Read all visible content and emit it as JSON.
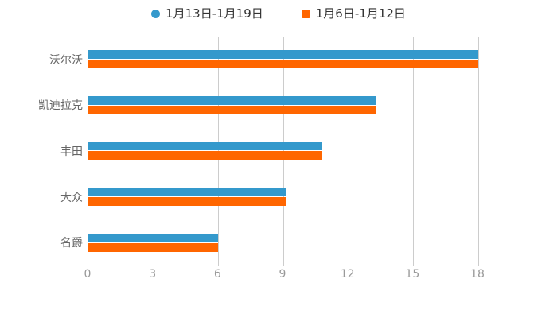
{
  "legend": {
    "items": [
      {
        "label": "1月13日-1月19日",
        "marker": "circle-icon",
        "color": "#3499CC"
      },
      {
        "label": "1月6日-1月12日",
        "marker": "square-icon",
        "color": "#FF6600"
      }
    ]
  },
  "chart_data": {
    "type": "bar",
    "orientation": "horizontal",
    "title": "",
    "xlabel": "",
    "ylabel": "",
    "categories": [
      "沃尔沃",
      "凯迪拉克",
      "丰田",
      "大众",
      "名爵"
    ],
    "series": [
      {
        "name": "1月13日-1月19日",
        "color": "#3499CC",
        "values": [
          18,
          13.3,
          10.8,
          9.1,
          6
        ]
      },
      {
        "name": "1月6日-1月12日",
        "color": "#FF6600",
        "values": [
          18,
          13.3,
          10.8,
          9.1,
          6
        ]
      }
    ],
    "xlim": [
      0,
      18
    ],
    "x_ticks": [
      "0",
      "3",
      "6",
      "9",
      "12",
      "15",
      "18"
    ],
    "grid": true,
    "legend_position": "top-center",
    "colors": {
      "gridline": "#cccccc",
      "axis_line": "#cccccc",
      "category_label": "#666666",
      "tick_label": "#999999",
      "legend_text": "#333333",
      "background": "#ffffff"
    }
  }
}
